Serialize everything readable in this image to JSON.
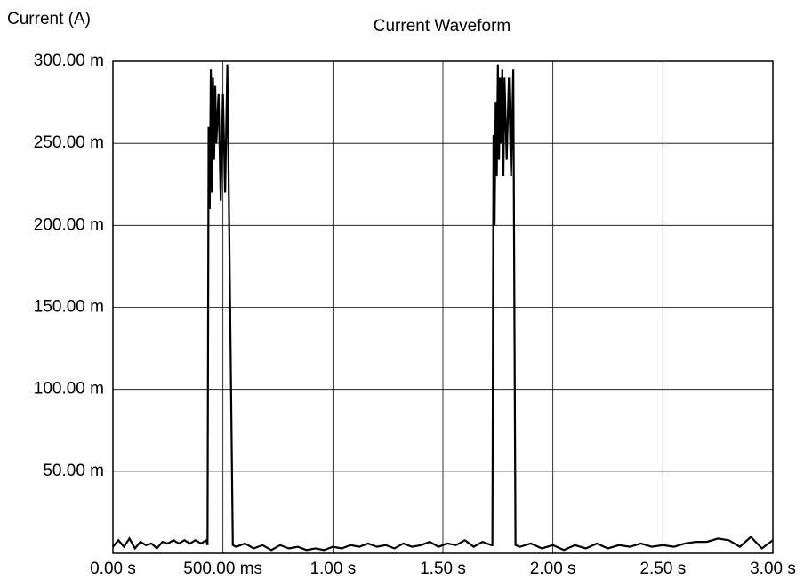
{
  "chart_data": {
    "type": "line",
    "title": "Current Waveform",
    "y_label": "Current (A)",
    "x": [
      0,
      0.025,
      0.05,
      0.075,
      0.1,
      0.125,
      0.15,
      0.175,
      0.2,
      0.225,
      0.25,
      0.275,
      0.3,
      0.325,
      0.35,
      0.375,
      0.4,
      0.425,
      0.43,
      0.435,
      0.44,
      0.445,
      0.45,
      0.455,
      0.46,
      0.465,
      0.47,
      0.48,
      0.49,
      0.5,
      0.51,
      0.52,
      0.545,
      0.56,
      0.6,
      0.64,
      0.68,
      0.72,
      0.76,
      0.8,
      0.84,
      0.88,
      0.92,
      0.96,
      1.0,
      1.04,
      1.08,
      1.12,
      1.16,
      1.2,
      1.24,
      1.28,
      1.32,
      1.36,
      1.4,
      1.44,
      1.48,
      1.52,
      1.56,
      1.6,
      1.64,
      1.68,
      1.72,
      1.725,
      1.73,
      1.735,
      1.74,
      1.745,
      1.75,
      1.755,
      1.76,
      1.765,
      1.77,
      1.775,
      1.78,
      1.79,
      1.8,
      1.81,
      1.82,
      1.83,
      1.85,
      1.9,
      1.95,
      2.0,
      2.05,
      2.1,
      2.15,
      2.2,
      2.25,
      2.3,
      2.35,
      2.4,
      2.45,
      2.5,
      2.55,
      2.6,
      2.65,
      2.7,
      2.75,
      2.8,
      2.85,
      2.9,
      2.95,
      3.0
    ],
    "series": [
      {
        "name": "Current",
        "color": "#000000",
        "values": [
          0.004,
          0.008,
          0.004,
          0.009,
          0.003,
          0.007,
          0.005,
          0.006,
          0.003,
          0.007,
          0.006,
          0.008,
          0.006,
          0.008,
          0.006,
          0.008,
          0.006,
          0.008,
          0.005,
          0.26,
          0.21,
          0.295,
          0.22,
          0.29,
          0.24,
          0.285,
          0.25,
          0.28,
          0.215,
          0.28,
          0.22,
          0.298,
          0.005,
          0.004,
          0.006,
          0.003,
          0.005,
          0.002,
          0.005,
          0.003,
          0.004,
          0.002,
          0.003,
          0.002,
          0.004,
          0.003,
          0.005,
          0.004,
          0.006,
          0.004,
          0.005,
          0.003,
          0.006,
          0.004,
          0.005,
          0.007,
          0.004,
          0.006,
          0.005,
          0.008,
          0.004,
          0.007,
          0.005,
          0.005,
          0.255,
          0.2,
          0.275,
          0.23,
          0.298,
          0.24,
          0.29,
          0.25,
          0.295,
          0.23,
          0.29,
          0.24,
          0.29,
          0.23,
          0.295,
          0.005,
          0.004,
          0.006,
          0.003,
          0.005,
          0.002,
          0.005,
          0.003,
          0.006,
          0.003,
          0.005,
          0.004,
          0.006,
          0.004,
          0.005,
          0.004,
          0.006,
          0.007,
          0.007,
          0.009,
          0.008,
          0.004,
          0.01,
          0.003,
          0.008
        ]
      }
    ],
    "xlim": [
      0,
      3
    ],
    "ylim": [
      0,
      0.3
    ],
    "xticks": [
      {
        "value": 0,
        "label": "0.00 s"
      },
      {
        "value": 0.5,
        "label": "500.00 ms"
      },
      {
        "value": 1,
        "label": "1.00 s"
      },
      {
        "value": 1.5,
        "label": "1.50 s"
      },
      {
        "value": 2,
        "label": "2.00 s"
      },
      {
        "value": 2.5,
        "label": "2.50 s"
      },
      {
        "value": 3,
        "label": "3.00 s"
      }
    ],
    "yticks": [
      {
        "value": 0.05,
        "label": "50.00 m"
      },
      {
        "value": 0.1,
        "label": "100.00 m"
      },
      {
        "value": 0.15,
        "label": "150.00 m"
      },
      {
        "value": 0.2,
        "label": "200.00 m"
      },
      {
        "value": 0.25,
        "label": "250.00 m"
      },
      {
        "value": 0.3,
        "label": "300.00 m"
      }
    ],
    "grid": true
  }
}
